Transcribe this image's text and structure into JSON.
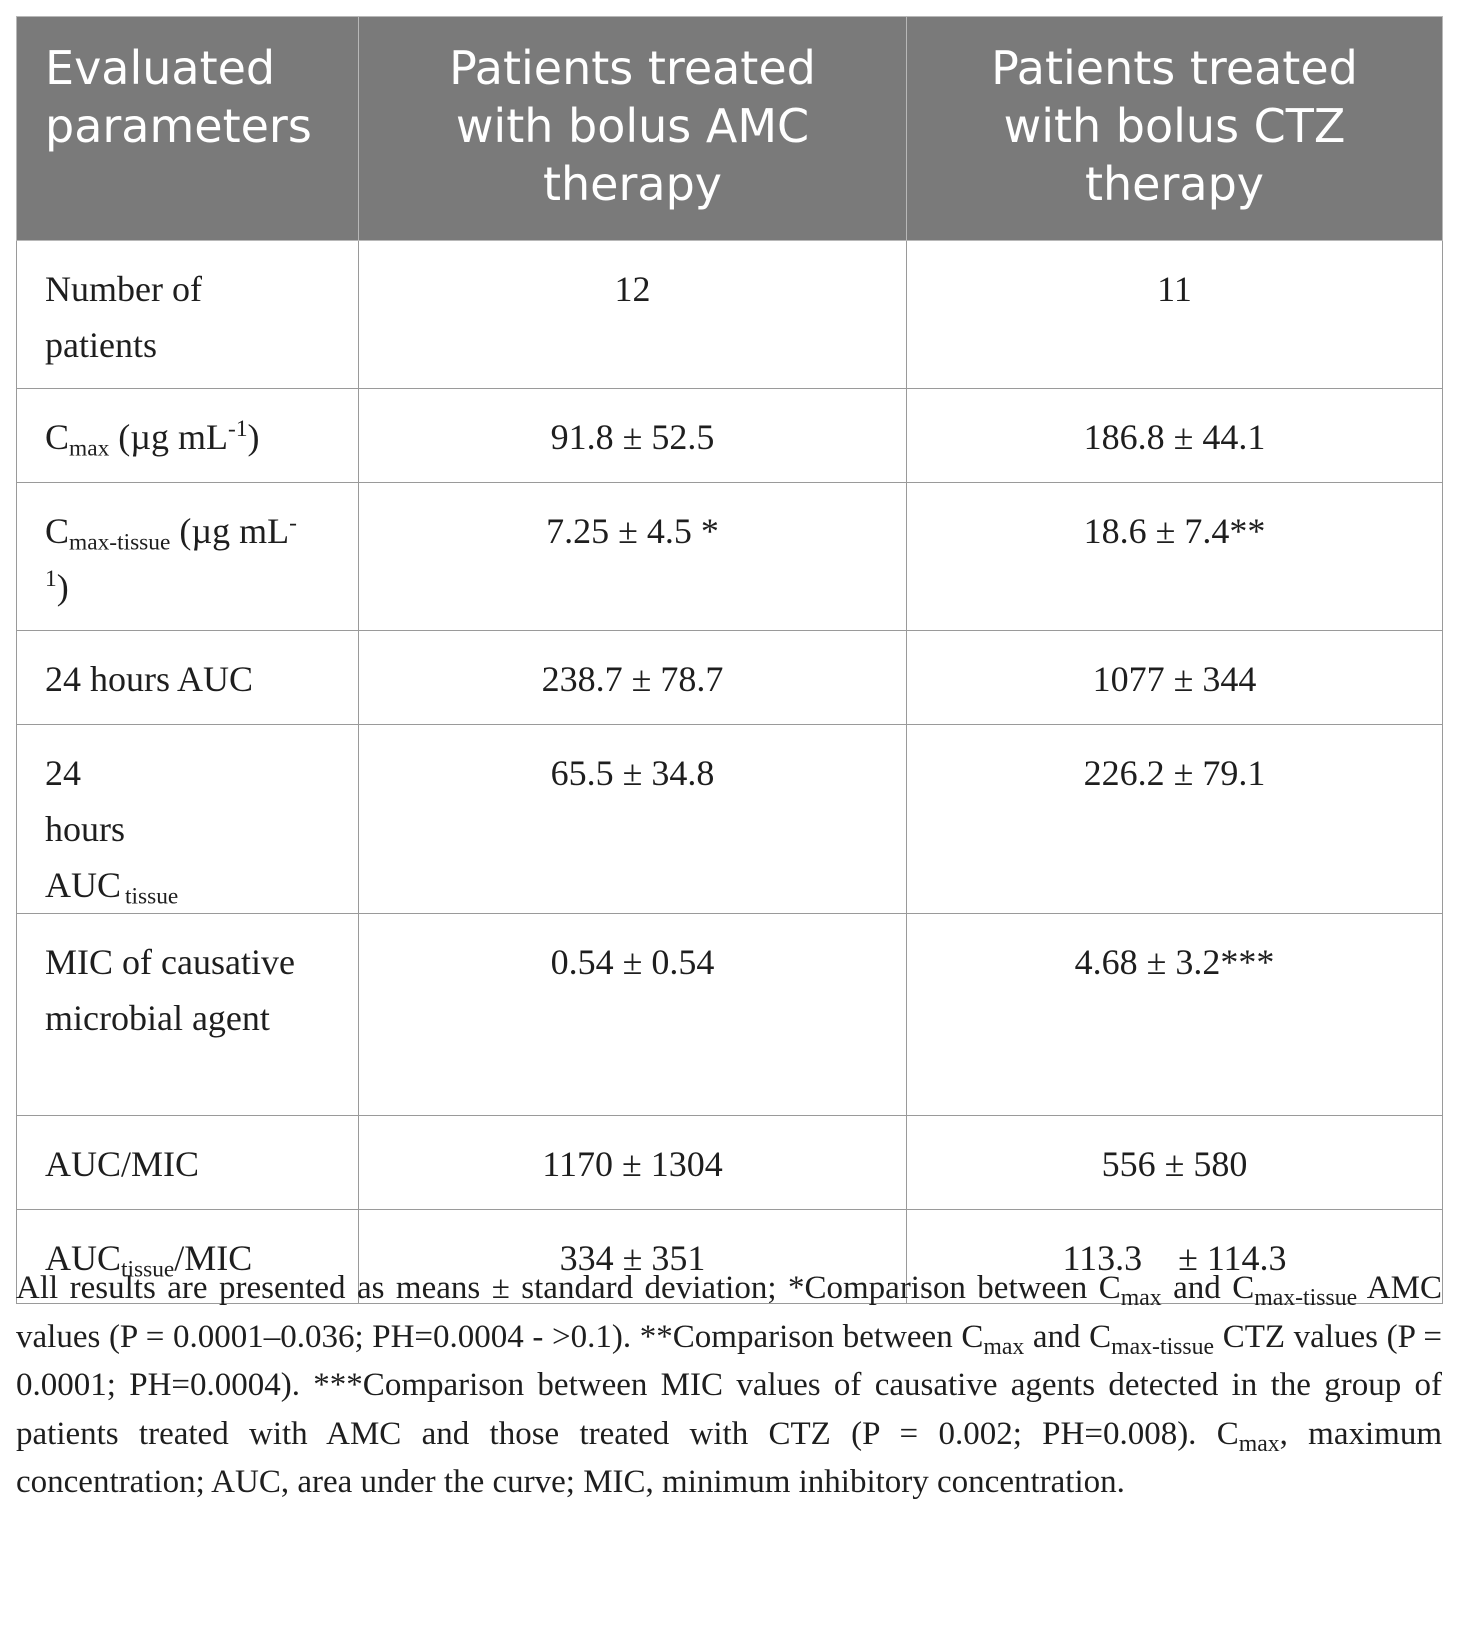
{
  "table": {
    "headers": [
      "Evaluated parameters",
      "Patients treated with bolus AMC therapy",
      "Patients treated with bolus CTZ therapy"
    ],
    "rows": [
      {
        "param": "Number of patients",
        "amc": "12",
        "ctz": "11"
      },
      {
        "param_main": "C",
        "param_sub": "max",
        "param_rest": " (µg mL",
        "param_sup": "-1",
        "param_end": ")",
        "amc": "91.8 ± 52.5",
        "ctz": "186.8 ± 44.1"
      },
      {
        "param_main": "C",
        "param_sub": "max-tissue",
        "param_rest": " (µg mL",
        "param_sup": "-1",
        "param_end": ")",
        "amc": "7.25 ± 4.5 *",
        "ctz": "18.6 ± 7.4**"
      },
      {
        "param": "24 hours AUC",
        "amc": "238.7 ± 78.7",
        "ctz": "1077 ± 344"
      },
      {
        "param_main": "24 hours AUC",
        "param_sub": "tissue",
        "amc": "65.5 ± 34.8",
        "ctz": "226.2 ± 79.1"
      },
      {
        "param": "MIC of causative microbial agent",
        "amc": "0.54 ± 0.54",
        "ctz": "4.68 ± 3.2***"
      },
      {
        "param": "AUC/MIC",
        "amc": "1170 ± 1304",
        "ctz": "556 ± 580"
      },
      {
        "param_main": "AUC",
        "param_sub": "tissue",
        "param_rest": "/MIC",
        "amc": "334 ± 351",
        "ctz": "113.3    ± 114.3"
      }
    ]
  },
  "footnote": {
    "t1": "All results are presented as means ± standard deviation; *Comparison between C",
    "s1": "max",
    "t2": " and C",
    "s2": "max-tissue",
    "t3": " AMC values (P = 0.0001–0.036; PH=0.0004 - >0.1). **Comparison between C",
    "s3": "max",
    "t4": " and C",
    "s4": "max-tissue",
    "t5": " CTZ values (P = 0.0001; PH=0.0004). ***Comparison between MIC values of causative agents detected in the group of patients treated with AMC and those treated with CTZ (P = 0.002; PH=0.008). C",
    "s5": "max",
    "t6": ", maximum concentration; AUC, area under the curve; MIC, minimum inhibitory concentration."
  }
}
